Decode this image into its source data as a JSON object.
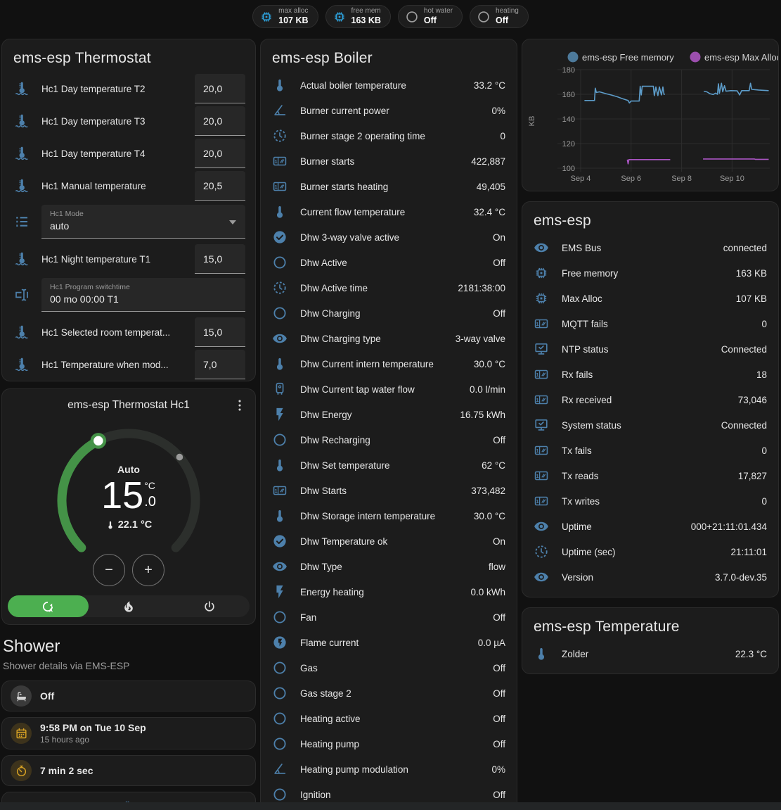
{
  "colors": {
    "accent_blue": "#4d80ab",
    "badge_blue": "#2d9fd8",
    "green": "#43a047",
    "mode_green": "#4caf50",
    "yellow": "#d9a324",
    "card_bg": "#1c1c1c"
  },
  "badges": [
    {
      "icon": "chip-icon",
      "style": "blue",
      "label": "max alloc",
      "value": "107 KB"
    },
    {
      "icon": "chip-icon",
      "style": "blue",
      "label": "free mem",
      "value": "163 KB"
    },
    {
      "icon": "circle-outline-icon",
      "style": "gray",
      "label": "hot water",
      "value": "Off"
    },
    {
      "icon": "circle-outline-icon",
      "style": "gray",
      "label": "heating",
      "value": "Off"
    }
  ],
  "thermostat_card": {
    "title": "ems-esp Thermostat",
    "rows": [
      {
        "type": "number",
        "icon": "thermometer-waves-icon",
        "label": "Hc1 Day temperature T2",
        "value": "20,0"
      },
      {
        "type": "number",
        "icon": "thermometer-waves-icon",
        "label": "Hc1 Day temperature T3",
        "value": "20,0"
      },
      {
        "type": "number",
        "icon": "thermometer-waves-icon",
        "label": "Hc1 Day temperature T4",
        "value": "20,0"
      },
      {
        "type": "number",
        "icon": "thermometer-waves-icon",
        "label": "Hc1 Manual temperature",
        "value": "20,5"
      },
      {
        "type": "select",
        "icon": "list-icon",
        "label": "Hc1 Mode",
        "value": "auto"
      },
      {
        "type": "number",
        "icon": "thermometer-waves-icon",
        "label": "Hc1 Night temperature T1",
        "value": "15,0"
      },
      {
        "type": "textfield",
        "icon": "textbox-icon",
        "label": "Hc1 Program switchtime",
        "value": "00 mo 00:00 T1"
      },
      {
        "type": "number",
        "icon": "thermometer-waves-icon",
        "label": "Hc1 Selected room temperat...",
        "value": "15,0"
      },
      {
        "type": "number",
        "icon": "thermometer-waves-icon",
        "label": "Hc1 Temperature when mod...",
        "value": "7,0"
      }
    ]
  },
  "dial_card": {
    "title": "ems-esp Thermostat Hc1",
    "mode_label": "Auto",
    "target_whole": "15",
    "target_decimal": ".0",
    "target_unit": "°C",
    "current_label": "22.1 °C",
    "min": 5,
    "max": 30,
    "target": 15.0,
    "current": 22.1,
    "decrease_label": "−",
    "increase_label": "+",
    "modes": [
      {
        "icon": "auto-mode-icon",
        "active": true
      },
      {
        "icon": "fire-icon",
        "active": false
      },
      {
        "icon": "power-icon",
        "active": false
      }
    ]
  },
  "shower": {
    "title": "Shower",
    "subtitle": "Shower details via EMS-ESP",
    "cards": [
      {
        "icon": "bathtub-icon",
        "style": "gray",
        "lines": [
          "Off"
        ]
      },
      {
        "icon": "calendar-icon",
        "style": "yellow",
        "lines": [
          "9:58 PM on Tue 10 Sep",
          "15 hours ago"
        ]
      },
      {
        "icon": "timer-icon",
        "style": "yellow",
        "lines": [
          "7 min 2 sec"
        ]
      },
      {
        "icon": "snowflake-alert-icon",
        "style": "center",
        "lines": []
      }
    ]
  },
  "boiler_card": {
    "title": "ems-esp Boiler",
    "rows": [
      {
        "icon": "thermometer-icon",
        "label": "Actual boiler temperature",
        "value": "33.2 °C"
      },
      {
        "icon": "angle-icon",
        "label": "Burner current power",
        "value": "0%"
      },
      {
        "icon": "progress-clock-icon",
        "label": "Burner stage 2 operating time",
        "value": "0"
      },
      {
        "icon": "counter-icon",
        "label": "Burner starts",
        "value": "422,887"
      },
      {
        "icon": "counter-icon",
        "label": "Burner starts heating",
        "value": "49,405"
      },
      {
        "icon": "thermometer-icon",
        "label": "Current flow temperature",
        "value": "32.4 °C"
      },
      {
        "icon": "check-circle-icon",
        "label": "Dhw 3-way valve active",
        "value": "On"
      },
      {
        "icon": "circle-outline-icon",
        "label": "Dhw Active",
        "value": "Off"
      },
      {
        "icon": "progress-clock-icon",
        "label": "Dhw Active time",
        "value": "2181:38:00"
      },
      {
        "icon": "circle-outline-icon",
        "label": "Dhw Charging",
        "value": "Off"
      },
      {
        "icon": "eye-icon",
        "label": "Dhw Charging type",
        "value": "3-way valve"
      },
      {
        "icon": "thermometer-icon",
        "label": "Dhw Current intern temperature",
        "value": "30.0 °C"
      },
      {
        "icon": "water-boiler-icon",
        "label": "Dhw Current tap water flow",
        "value": "0.0 l/min"
      },
      {
        "icon": "flash-icon",
        "label": "Dhw Energy",
        "value": "16.75 kWh"
      },
      {
        "icon": "circle-outline-icon",
        "label": "Dhw Recharging",
        "value": "Off"
      },
      {
        "icon": "thermometer-icon",
        "label": "Dhw Set temperature",
        "value": "62 °C"
      },
      {
        "icon": "counter-icon",
        "label": "Dhw Starts",
        "value": "373,482"
      },
      {
        "icon": "thermometer-icon",
        "label": "Dhw Storage intern temperature",
        "value": "30.0 °C"
      },
      {
        "icon": "check-circle-icon",
        "label": "Dhw Temperature ok",
        "value": "On"
      },
      {
        "icon": "eye-icon",
        "label": "Dhw Type",
        "value": "flow"
      },
      {
        "icon": "flash-icon",
        "label": "Energy heating",
        "value": "0.0 kWh"
      },
      {
        "icon": "circle-outline-icon",
        "label": "Fan",
        "value": "Off"
      },
      {
        "icon": "flash-circle-icon",
        "label": "Flame current",
        "value": "0.0 µA"
      },
      {
        "icon": "circle-outline-icon",
        "label": "Gas",
        "value": "Off"
      },
      {
        "icon": "circle-outline-icon",
        "label": "Gas stage 2",
        "value": "Off"
      },
      {
        "icon": "circle-outline-icon",
        "label": "Heating active",
        "value": "Off"
      },
      {
        "icon": "circle-outline-icon",
        "label": "Heating pump",
        "value": "Off"
      },
      {
        "icon": "angle-icon",
        "label": "Heating pump modulation",
        "value": "0%"
      },
      {
        "icon": "circle-outline-icon",
        "label": "Ignition",
        "value": "Off"
      }
    ]
  },
  "emsesp_card": {
    "title": "ems-esp",
    "rows": [
      {
        "icon": "eye-icon",
        "label": "EMS Bus",
        "value": "connected"
      },
      {
        "icon": "chip-icon",
        "label": "Free memory",
        "value": "163 KB"
      },
      {
        "icon": "chip-icon",
        "label": "Max Alloc",
        "value": "107 KB"
      },
      {
        "icon": "counter-icon",
        "label": "MQTT fails",
        "value": "0"
      },
      {
        "icon": "monitor-check-icon",
        "label": "NTP status",
        "value": "Connected"
      },
      {
        "icon": "counter-icon",
        "label": "Rx fails",
        "value": "18"
      },
      {
        "icon": "counter-icon",
        "label": "Rx received",
        "value": "73,046"
      },
      {
        "icon": "monitor-check-icon",
        "label": "System status",
        "value": "Connected"
      },
      {
        "icon": "counter-icon",
        "label": "Tx fails",
        "value": "0"
      },
      {
        "icon": "counter-icon",
        "label": "Tx reads",
        "value": "17,827"
      },
      {
        "icon": "counter-icon",
        "label": "Tx writes",
        "value": "0"
      },
      {
        "icon": "eye-icon",
        "label": "Uptime",
        "value": "000+21:11:01.434"
      },
      {
        "icon": "progress-clock-icon",
        "label": "Uptime (sec)",
        "value": "21:11:01"
      },
      {
        "icon": "eye-icon",
        "label": "Version",
        "value": "3.7.0-dev.35"
      }
    ]
  },
  "temperature_card": {
    "title": "ems-esp Temperature",
    "rows": [
      {
        "icon": "thermometer-icon",
        "label": "Zolder",
        "value": "22.3 °C"
      }
    ]
  },
  "chart_data": {
    "type": "line",
    "title": "",
    "xlabel": "",
    "ylabel": "KB",
    "ylim": [
      95,
      185
    ],
    "yticks": [
      100,
      120,
      140,
      160,
      180
    ],
    "xtick_labels": [
      "Sep 4",
      "Sep 6",
      "Sep 8",
      "Sep 10"
    ],
    "xtick_days": [
      4,
      6,
      8,
      10
    ],
    "xlim": [
      3.05,
      11.55
    ],
    "grid": true,
    "legend_position": "top",
    "series": [
      {
        "name": "ems-esp Free memory",
        "color": "#5d9cc9",
        "dot_color": "#4d7a9b",
        "points": [
          [
            4.15,
            155
          ],
          [
            4.55,
            155
          ],
          [
            4.58,
            165
          ],
          [
            4.62,
            161.5
          ],
          [
            4.75,
            162
          ],
          [
            5.0,
            160.5
          ],
          [
            5.2,
            159.5
          ],
          [
            5.45,
            158
          ],
          [
            5.65,
            156.5
          ],
          [
            5.8,
            155.5
          ],
          [
            5.88,
            155
          ],
          [
            5.93,
            153
          ],
          [
            6.0,
            154.5
          ],
          [
            6.32,
            154.5
          ],
          [
            6.36,
            166.5
          ],
          [
            6.4,
            159.5
          ],
          [
            6.44,
            166.5
          ],
          [
            6.88,
            166.5
          ],
          [
            6.92,
            159
          ],
          [
            6.98,
            166
          ],
          [
            7.06,
            159
          ],
          [
            7.12,
            166
          ],
          [
            7.2,
            159.5
          ],
          [
            7.26,
            166
          ],
          [
            7.3,
            160
          ],
          [
            7.34,
            160
          ],
          null,
          [
            8.88,
            162.5
          ],
          [
            9.0,
            162
          ],
          [
            9.12,
            160.5
          ],
          [
            9.25,
            159.8
          ],
          [
            9.35,
            161
          ],
          [
            9.42,
            160
          ],
          [
            9.46,
            168.5
          ],
          [
            9.5,
            160.8
          ],
          [
            9.58,
            169
          ],
          [
            9.63,
            162
          ],
          [
            9.7,
            167
          ],
          [
            9.76,
            162.5
          ],
          [
            9.95,
            163
          ],
          [
            10.2,
            162.8
          ],
          [
            10.3,
            159.5
          ],
          [
            10.38,
            163
          ],
          [
            10.68,
            163
          ],
          [
            10.73,
            169
          ],
          [
            10.78,
            164
          ],
          [
            11.05,
            163.5
          ],
          [
            11.45,
            163
          ]
        ]
      },
      {
        "name": "ems-esp Max Alloc",
        "color": "#aa55c3",
        "dot_color": "#9c4fae",
        "points": [
          [
            5.85,
            107
          ],
          [
            5.88,
            103.5
          ],
          [
            5.91,
            107
          ],
          [
            7.55,
            107
          ],
          null,
          [
            8.85,
            107.5
          ],
          [
            10.88,
            107.5
          ],
          [
            10.92,
            107.2
          ],
          [
            11.45,
            107.2
          ]
        ]
      }
    ]
  }
}
